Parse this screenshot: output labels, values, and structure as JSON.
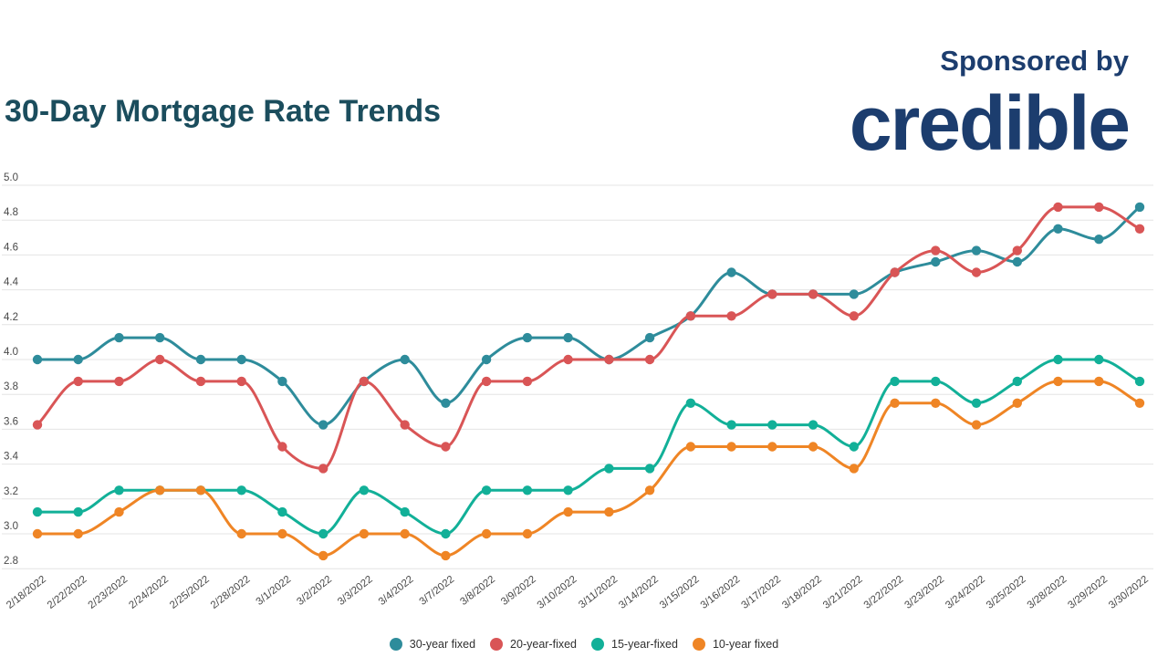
{
  "header": {
    "title": "30-Day Mortgage Rate Trends",
    "sponsored_by": "Sponsored by",
    "sponsor_name": "credible"
  },
  "colors": {
    "title": "#1B4D5D",
    "sponsor_navy": "#1C3D6E",
    "grid": "#E4E4E4",
    "axis_text": "#484848",
    "series_30yr": "#2E8C9B",
    "series_20yr": "#D95556",
    "series_15yr": "#12B098",
    "series_10yr": "#EF8525"
  },
  "chart_data": {
    "type": "line",
    "title": "30-Day Mortgage Rate Trends",
    "xlabel": "",
    "ylabel": "",
    "grid": true,
    "legend_position": "bottom",
    "ylim": [
      2.8,
      5.0
    ],
    "yticks": [
      5.0,
      4.8,
      4.6,
      4.4,
      4.2,
      4.0,
      3.8,
      3.6,
      3.4,
      3.2,
      3.0,
      2.8
    ],
    "x": [
      "2/18/2022",
      "2/22/2022",
      "2/23/2022",
      "2/24/2022",
      "2/25/2022",
      "2/28/2022",
      "3/1/2022",
      "3/2/2022",
      "3/3/2022",
      "3/4/2022",
      "3/7/2022",
      "3/8/2022",
      "3/9/2022",
      "3/10/2022",
      "3/11/2022",
      "3/14/2022",
      "3/15/2022",
      "3/16/2022",
      "3/17/2022",
      "3/18/2022",
      "3/21/2022",
      "3/22/2022",
      "3/23/2022",
      "3/24/2022",
      "3/25/2022",
      "3/28/2022",
      "3/29/2022",
      "3/30/2022"
    ],
    "series": [
      {
        "name": "30-year fixed",
        "color": "#2E8C9B",
        "values": [
          4.0,
          4.0,
          4.125,
          4.125,
          4.0,
          4.0,
          3.875,
          3.625,
          3.875,
          4.0,
          3.75,
          4.0,
          4.125,
          4.125,
          4.0,
          4.125,
          4.25,
          4.5,
          4.375,
          4.375,
          4.375,
          4.5,
          4.56,
          4.625,
          4.56,
          4.75,
          4.69,
          4.875
        ]
      },
      {
        "name": "20-year-fixed",
        "color": "#D95556",
        "values": [
          3.625,
          3.875,
          3.875,
          4.0,
          3.875,
          3.875,
          3.5,
          3.375,
          3.875,
          3.625,
          3.5,
          3.875,
          3.875,
          4.0,
          4.0,
          4.0,
          4.25,
          4.25,
          4.375,
          4.375,
          4.25,
          4.5,
          4.625,
          4.5,
          4.625,
          4.875,
          4.875,
          4.75
        ]
      },
      {
        "name": "15-year-fixed",
        "color": "#12B098",
        "values": [
          3.125,
          3.125,
          3.25,
          3.25,
          3.25,
          3.25,
          3.125,
          3.0,
          3.25,
          3.125,
          3.0,
          3.25,
          3.25,
          3.25,
          3.375,
          3.375,
          3.75,
          3.625,
          3.625,
          3.625,
          3.5,
          3.875,
          3.875,
          3.75,
          3.875,
          4.0,
          4.0,
          3.875
        ]
      },
      {
        "name": "10-year fixed",
        "color": "#EF8525",
        "values": [
          3.0,
          3.0,
          3.125,
          3.25,
          3.25,
          3.0,
          3.0,
          2.875,
          3.0,
          3.0,
          2.875,
          3.0,
          3.0,
          3.125,
          3.125,
          3.25,
          3.5,
          3.5,
          3.5,
          3.5,
          3.375,
          3.75,
          3.75,
          3.625,
          3.75,
          3.875,
          3.875,
          3.75
        ]
      }
    ]
  }
}
